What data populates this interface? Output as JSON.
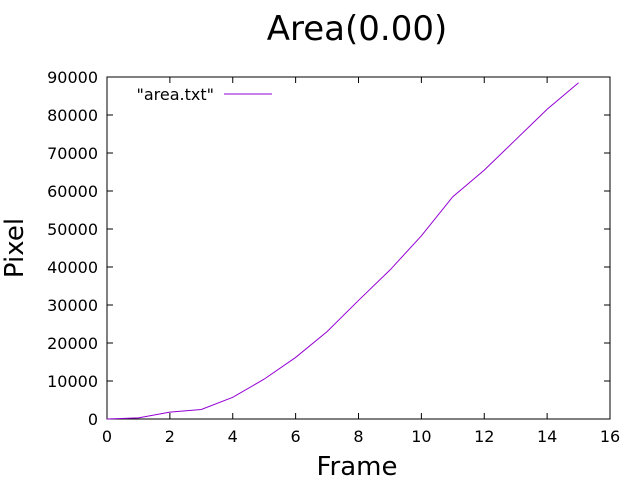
{
  "chart_data": {
    "type": "line",
    "title": "Area(0.00)",
    "xlabel": "Frame",
    "ylabel": "Pixel",
    "xlim": [
      0,
      16
    ],
    "ylim": [
      0,
      90000
    ],
    "xticks": [
      0,
      2,
      4,
      6,
      8,
      10,
      12,
      14,
      16
    ],
    "yticks": [
      0,
      10000,
      20000,
      30000,
      40000,
      50000,
      60000,
      70000,
      80000,
      90000
    ],
    "grid": false,
    "legend_position": "top-left",
    "series": [
      {
        "name": "\"area.txt\"",
        "color": "#9400d3",
        "x": [
          0,
          1,
          2,
          3,
          4,
          5,
          6,
          7,
          8,
          9,
          10,
          11,
          12,
          13,
          14,
          15
        ],
        "y": [
          0,
          300,
          1800,
          2500,
          5700,
          10500,
          16200,
          23000,
          31200,
          39200,
          48200,
          58500,
          65500,
          73500,
          81500,
          88500
        ]
      }
    ]
  }
}
